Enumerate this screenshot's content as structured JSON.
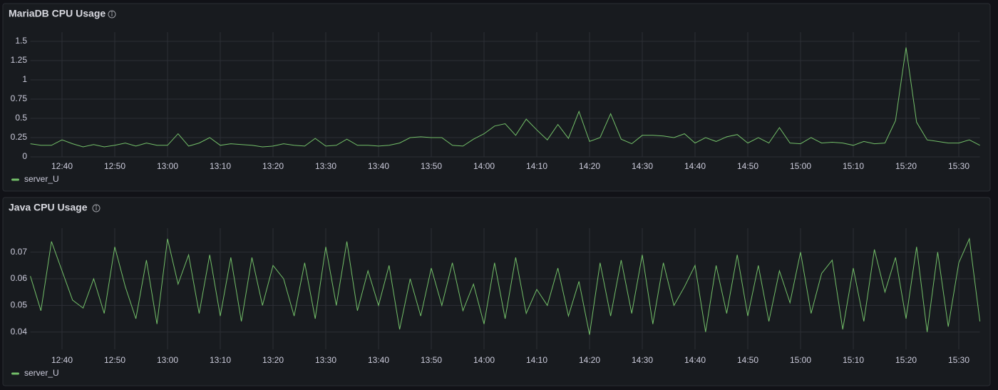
{
  "chart_data": [
    {
      "type": "line",
      "title": "MariaDB CPU Usage",
      "x": [
        "12:34",
        "12:36",
        "12:38",
        "12:40",
        "12:42",
        "12:44",
        "12:46",
        "12:48",
        "12:50",
        "12:52",
        "12:54",
        "12:56",
        "12:58",
        "13:00",
        "13:02",
        "13:04",
        "13:06",
        "13:08",
        "13:10",
        "13:12",
        "13:14",
        "13:16",
        "13:18",
        "13:20",
        "13:22",
        "13:24",
        "13:26",
        "13:28",
        "13:30",
        "13:32",
        "13:34",
        "13:36",
        "13:38",
        "13:40",
        "13:42",
        "13:44",
        "13:46",
        "13:48",
        "13:50",
        "13:52",
        "13:54",
        "13:56",
        "13:58",
        "14:00",
        "14:02",
        "14:04",
        "14:06",
        "14:08",
        "14:10",
        "14:12",
        "14:14",
        "14:16",
        "14:18",
        "14:20",
        "14:22",
        "14:24",
        "14:26",
        "14:28",
        "14:30",
        "14:32",
        "14:34",
        "14:36",
        "14:38",
        "14:40",
        "14:42",
        "14:44",
        "14:46",
        "14:48",
        "14:50",
        "14:52",
        "14:54",
        "14:56",
        "14:58",
        "15:00",
        "15:02",
        "15:04",
        "15:06",
        "15:08",
        "15:10",
        "15:12",
        "15:14",
        "15:16",
        "15:18",
        "15:20",
        "15:22",
        "15:24",
        "15:26",
        "15:28",
        "15:30",
        "15:32",
        "15:34"
      ],
      "series": [
        {
          "name": "server_U",
          "color": "#73bf69",
          "values": [
            0.17,
            0.15,
            0.15,
            0.22,
            0.17,
            0.13,
            0.16,
            0.13,
            0.15,
            0.18,
            0.14,
            0.18,
            0.15,
            0.15,
            0.3,
            0.14,
            0.18,
            0.25,
            0.15,
            0.17,
            0.16,
            0.15,
            0.13,
            0.14,
            0.17,
            0.15,
            0.14,
            0.24,
            0.14,
            0.15,
            0.23,
            0.15,
            0.15,
            0.14,
            0.15,
            0.18,
            0.25,
            0.26,
            0.25,
            0.25,
            0.15,
            0.14,
            0.23,
            0.3,
            0.4,
            0.43,
            0.28,
            0.49,
            0.35,
            0.22,
            0.42,
            0.24,
            0.59,
            0.2,
            0.25,
            0.56,
            0.23,
            0.17,
            0.28,
            0.28,
            0.27,
            0.25,
            0.3,
            0.18,
            0.25,
            0.2,
            0.26,
            0.29,
            0.18,
            0.25,
            0.18,
            0.38,
            0.18,
            0.17,
            0.25,
            0.18,
            0.19,
            0.18,
            0.15,
            0.2,
            0.17,
            0.18,
            0.47,
            1.42,
            0.45,
            0.22,
            0.2,
            0.18,
            0.18,
            0.22,
            0.15
          ]
        }
      ],
      "xlim": [
        "12:34",
        "15:34"
      ],
      "xticks": [
        "12:40",
        "12:50",
        "13:00",
        "13:10",
        "13:20",
        "13:30",
        "13:40",
        "13:50",
        "14:00",
        "14:10",
        "14:20",
        "14:30",
        "14:40",
        "14:50",
        "15:00",
        "15:10",
        "15:20",
        "15:30"
      ],
      "ylim": [
        0,
        1.62
      ],
      "yticks": [
        0,
        0.25,
        0.5,
        0.75,
        1,
        1.25,
        1.5
      ],
      "grid": true
    },
    {
      "type": "line",
      "title": "Java CPU Usage",
      "x": [
        "12:34",
        "12:36",
        "12:38",
        "12:40",
        "12:42",
        "12:44",
        "12:46",
        "12:48",
        "12:50",
        "12:52",
        "12:54",
        "12:56",
        "12:58",
        "13:00",
        "13:02",
        "13:04",
        "13:06",
        "13:08",
        "13:10",
        "13:12",
        "13:14",
        "13:16",
        "13:18",
        "13:20",
        "13:22",
        "13:24",
        "13:26",
        "13:28",
        "13:30",
        "13:32",
        "13:34",
        "13:36",
        "13:38",
        "13:40",
        "13:42",
        "13:44",
        "13:46",
        "13:48",
        "13:50",
        "13:52",
        "13:54",
        "13:56",
        "13:58",
        "14:00",
        "14:02",
        "14:04",
        "14:06",
        "14:08",
        "14:10",
        "14:12",
        "14:14",
        "14:16",
        "14:18",
        "14:20",
        "14:22",
        "14:24",
        "14:26",
        "14:28",
        "14:30",
        "14:32",
        "14:34",
        "14:36",
        "14:38",
        "14:40",
        "14:42",
        "14:44",
        "14:46",
        "14:48",
        "14:50",
        "14:52",
        "14:54",
        "14:56",
        "14:58",
        "15:00",
        "15:02",
        "15:04",
        "15:06",
        "15:08",
        "15:10",
        "15:12",
        "15:14",
        "15:16",
        "15:18",
        "15:20",
        "15:22",
        "15:24",
        "15:26",
        "15:28",
        "15:30",
        "15:32",
        "15:34"
      ],
      "series": [
        {
          "name": "server_U",
          "color": "#73bf69",
          "values": [
            0.061,
            0.048,
            0.074,
            0.063,
            0.052,
            0.049,
            0.06,
            0.047,
            0.072,
            0.057,
            0.045,
            0.067,
            0.043,
            0.075,
            0.058,
            0.069,
            0.047,
            0.069,
            0.046,
            0.068,
            0.044,
            0.068,
            0.05,
            0.065,
            0.06,
            0.046,
            0.066,
            0.045,
            0.072,
            0.05,
            0.074,
            0.048,
            0.063,
            0.05,
            0.065,
            0.041,
            0.06,
            0.046,
            0.064,
            0.05,
            0.066,
            0.048,
            0.058,
            0.043,
            0.066,
            0.045,
            0.068,
            0.047,
            0.056,
            0.05,
            0.064,
            0.046,
            0.059,
            0.039,
            0.066,
            0.046,
            0.067,
            0.047,
            0.069,
            0.043,
            0.066,
            0.05,
            0.057,
            0.065,
            0.04,
            0.065,
            0.047,
            0.069,
            0.046,
            0.065,
            0.044,
            0.063,
            0.051,
            0.07,
            0.047,
            0.062,
            0.067,
            0.041,
            0.064,
            0.044,
            0.071,
            0.055,
            0.068,
            0.045,
            0.072,
            0.04,
            0.07,
            0.042,
            0.066,
            0.075,
            0.044
          ]
        }
      ],
      "xlim": [
        "12:34",
        "15:34"
      ],
      "xticks": [
        "12:40",
        "12:50",
        "13:00",
        "13:10",
        "13:20",
        "13:30",
        "13:40",
        "13:50",
        "14:00",
        "14:10",
        "14:20",
        "14:30",
        "14:40",
        "14:50",
        "15:00",
        "15:10",
        "15:20",
        "15:30"
      ],
      "ylim": [
        0.0335,
        0.079
      ],
      "yticks": [
        0.04,
        0.05,
        0.06,
        0.07
      ],
      "grid": true
    }
  ]
}
